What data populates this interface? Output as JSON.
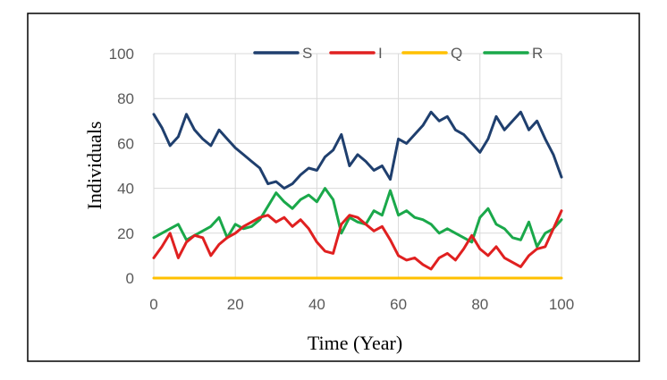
{
  "chart_data": {
    "type": "line",
    "xlabel": "Time (Year)",
    "ylabel": "Individuals",
    "xlim": [
      0,
      100
    ],
    "ylim": [
      0,
      100
    ],
    "xticks": [
      0,
      20,
      40,
      60,
      80,
      100
    ],
    "yticks": [
      0,
      20,
      40,
      60,
      80,
      100
    ],
    "grid": "vertical and horizontal major gridlines",
    "legend_position": "top",
    "x": [
      0,
      2,
      4,
      6,
      8,
      10,
      12,
      14,
      16,
      18,
      20,
      22,
      24,
      26,
      28,
      30,
      32,
      34,
      36,
      38,
      40,
      42,
      44,
      46,
      48,
      50,
      52,
      54,
      56,
      58,
      60,
      62,
      64,
      66,
      68,
      70,
      72,
      74,
      76,
      78,
      80,
      82,
      84,
      86,
      88,
      90,
      92,
      94,
      96,
      98,
      100
    ],
    "series": [
      {
        "name": "S",
        "color": "#1f3f6e",
        "values": [
          73,
          67,
          59,
          63,
          73,
          66,
          62,
          59,
          66,
          62,
          58,
          55,
          52,
          49,
          42,
          43,
          40,
          42,
          46,
          49,
          48,
          54,
          57,
          64,
          50,
          55,
          52,
          48,
          50,
          44,
          62,
          60,
          64,
          68,
          74,
          70,
          72,
          66,
          64,
          60,
          56,
          62,
          72,
          66,
          70,
          74,
          66,
          70,
          62,
          55,
          45
        ]
      },
      {
        "name": "I",
        "color": "#e02020",
        "values": [
          9,
          14,
          20,
          9,
          16,
          19,
          18,
          10,
          15,
          18,
          20,
          23,
          25,
          27,
          28,
          25,
          27,
          23,
          26,
          22,
          16,
          12,
          11,
          24,
          28,
          27,
          24,
          21,
          23,
          17,
          10,
          8,
          9,
          6,
          4,
          9,
          11,
          8,
          13,
          19,
          13,
          10,
          14,
          9,
          7,
          5,
          10,
          13,
          14,
          22,
          30
        ]
      },
      {
        "name": "Q",
        "color": "#ffc000",
        "values": [
          0,
          0,
          0,
          0,
          0,
          0,
          0,
          0,
          0,
          0,
          0,
          0,
          0,
          0,
          0,
          0,
          0,
          0,
          0,
          0,
          0,
          0,
          0,
          0,
          0,
          0,
          0,
          0,
          0,
          0,
          0,
          0,
          0,
          0,
          0,
          0,
          0,
          0,
          0,
          0,
          0,
          0,
          0,
          0,
          0,
          0,
          0,
          0,
          0,
          0,
          0
        ]
      },
      {
        "name": "R",
        "color": "#1aa84a",
        "values": [
          18,
          20,
          22,
          24,
          17,
          19,
          21,
          23,
          27,
          18,
          24,
          22,
          23,
          26,
          32,
          38,
          34,
          31,
          35,
          37,
          34,
          40,
          35,
          20,
          27,
          25,
          24,
          30,
          28,
          39,
          28,
          30,
          27,
          26,
          24,
          20,
          22,
          20,
          18,
          16,
          27,
          31,
          24,
          22,
          18,
          17,
          25,
          14,
          20,
          22,
          26
        ]
      }
    ]
  }
}
